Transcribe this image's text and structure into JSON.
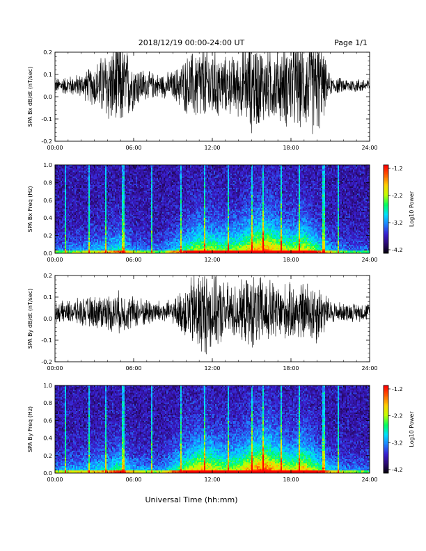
{
  "header": {
    "title": "2018/12/19   00:00-24:00 UT",
    "page": "Page 1/1"
  },
  "footer": {
    "xlabel": "Universal Time (hh:mm)"
  },
  "colors": {
    "trace": "#000000",
    "background_low": "#1a0010",
    "colorscale": [
      "#000000",
      "#2a0a6e",
      "#3a1fd0",
      "#1f7fff",
      "#00e0ff",
      "#00ff60",
      "#c0ff00",
      "#ffd000",
      "#ff6000",
      "#ff0000"
    ]
  },
  "chart_data": [
    {
      "type": "line",
      "name": "bx-timeseries",
      "ylabel": "SPA Bx dB/dt (nT/sec)",
      "xlim": [
        0,
        24
      ],
      "ylim": [
        -0.2,
        0.2
      ],
      "x_tick_labels": [
        "00:00",
        "06:00",
        "12:00",
        "18:00",
        "24:00"
      ],
      "y_tick_labels": [
        "-0.2",
        "-0.1",
        "0.0",
        "0.1",
        "0.2"
      ],
      "envelope_hours": [
        0,
        1,
        2,
        3,
        4,
        5,
        6,
        7,
        8,
        9,
        10,
        11,
        12,
        13,
        14,
        15,
        16,
        17,
        18,
        19,
        20,
        21,
        22,
        23,
        24
      ],
      "envelope_amplitude": [
        0.03,
        0.04,
        0.05,
        0.09,
        0.16,
        0.2,
        0.1,
        0.06,
        0.05,
        0.06,
        0.12,
        0.17,
        0.16,
        0.12,
        0.13,
        0.2,
        0.16,
        0.15,
        0.19,
        0.18,
        0.22,
        0.04,
        0.03,
        0.03,
        0.03
      ],
      "offset": 0.05
    },
    {
      "type": "heatmap",
      "name": "bx-spectrogram",
      "ylabel": "SPA Bx Freq (Hz)",
      "xlim": [
        0,
        24
      ],
      "ylim": [
        0,
        1
      ],
      "x_tick_labels": [
        "00:00",
        "06:00",
        "12:00",
        "18:00",
        "24:00"
      ],
      "y_tick_labels": [
        "0.0",
        "0.2",
        "0.4",
        "0.6",
        "0.8",
        "1.0"
      ],
      "colorbar": {
        "label": "Log10 Power",
        "range": [
          -4.2,
          -1.2
        ],
        "tick_labels": [
          "-1.2",
          "-2.2",
          "-3.2",
          "-4.2"
        ]
      },
      "activity_hours": [
        0,
        2,
        4,
        5,
        6,
        8,
        10,
        11,
        12,
        13,
        14,
        15,
        16,
        17,
        18,
        19,
        20,
        21,
        22,
        24
      ],
      "activity_level": [
        0.2,
        0.25,
        0.35,
        0.45,
        0.25,
        0.2,
        0.5,
        0.65,
        0.6,
        0.55,
        0.6,
        0.75,
        0.85,
        0.7,
        0.6,
        0.7,
        0.5,
        0.3,
        0.2,
        0.15
      ],
      "spikes_hours": [
        0.8,
        2.6,
        3.9,
        5.2,
        7.4,
        9.6,
        11.4,
        13.2,
        15.0,
        15.9,
        17.3,
        18.6,
        20.5,
        21.6
      ]
    },
    {
      "type": "line",
      "name": "by-timeseries",
      "ylabel": "SPA By dB/dt (nT/sec)",
      "xlim": [
        0,
        24
      ],
      "ylim": [
        -0.2,
        0.2
      ],
      "x_tick_labels": [
        "00:00",
        "06:00",
        "12:00",
        "18:00",
        "24:00"
      ],
      "y_tick_labels": [
        "-0.2",
        "-0.1",
        "0.0",
        "0.1",
        "0.2"
      ],
      "envelope_hours": [
        0,
        1,
        2,
        3,
        4,
        5,
        6,
        7,
        8,
        9,
        10,
        11,
        12,
        13,
        14,
        15,
        16,
        17,
        18,
        19,
        20,
        21,
        22,
        23,
        24
      ],
      "envelope_amplitude": [
        0.04,
        0.05,
        0.06,
        0.07,
        0.08,
        0.09,
        0.07,
        0.06,
        0.05,
        0.05,
        0.12,
        0.2,
        0.17,
        0.13,
        0.12,
        0.16,
        0.15,
        0.13,
        0.12,
        0.13,
        0.14,
        0.05,
        0.04,
        0.04,
        0.04
      ],
      "offset": 0.03
    },
    {
      "type": "heatmap",
      "name": "by-spectrogram",
      "ylabel": "SPA By Freq (Hz)",
      "xlim": [
        0,
        24
      ],
      "ylim": [
        0,
        1
      ],
      "x_tick_labels": [
        "00:00",
        "06:00",
        "12:00",
        "18:00",
        "24:00"
      ],
      "y_tick_labels": [
        "0.0",
        "0.2",
        "0.4",
        "0.6",
        "0.8",
        "1.0"
      ],
      "colorbar": {
        "label": "Log10 Power",
        "range": [
          -4.2,
          -1.2
        ],
        "tick_labels": [
          "-1.2",
          "-2.2",
          "-3.2",
          "-4.2"
        ]
      },
      "activity_hours": [
        0,
        2,
        4,
        5,
        6,
        8,
        10,
        11,
        12,
        13,
        14,
        15,
        16,
        17,
        18,
        19,
        20,
        21,
        22,
        24
      ],
      "activity_level": [
        0.25,
        0.3,
        0.4,
        0.5,
        0.3,
        0.25,
        0.6,
        0.75,
        0.7,
        0.6,
        0.65,
        0.8,
        0.9,
        0.75,
        0.65,
        0.75,
        0.55,
        0.35,
        0.25,
        0.2
      ],
      "spikes_hours": [
        0.8,
        2.6,
        3.9,
        5.2,
        7.4,
        9.6,
        11.4,
        13.2,
        15.0,
        15.9,
        17.3,
        18.6,
        20.5,
        21.6
      ]
    }
  ]
}
